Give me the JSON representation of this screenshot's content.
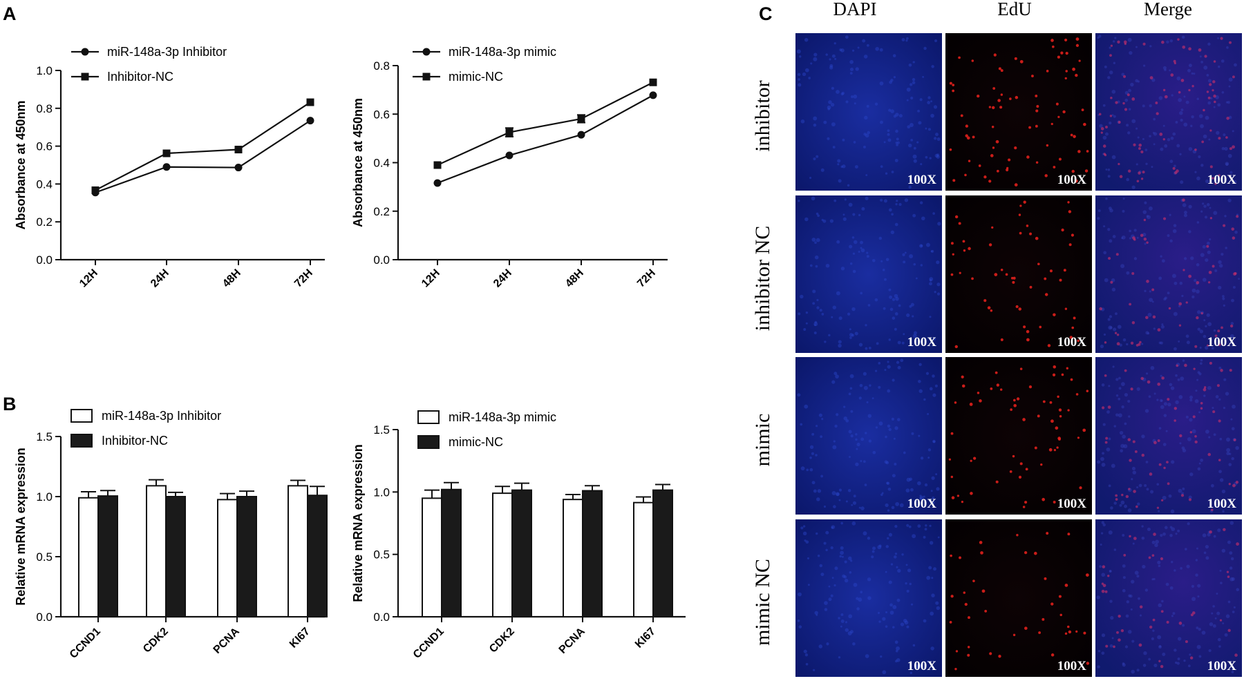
{
  "panel_labels": {
    "a": "A",
    "b": "B",
    "c": "C"
  },
  "chart_data": [
    {
      "type": "line",
      "panel": "A",
      "title": "",
      "xlabel": "",
      "ylabel": "Absorbance at 450nm",
      "categories": [
        "12H",
        "24H",
        "48H",
        "72H"
      ],
      "ylim": [
        0,
        1.0
      ],
      "yticks": [
        "0.0",
        "0.2",
        "0.4",
        "0.6",
        "0.8",
        "1.0"
      ],
      "yticks_values": [
        0,
        0.2,
        0.4,
        0.6,
        0.8,
        1.0
      ],
      "series": [
        {
          "name": "miR-148a-3p Inhibitor",
          "marker": "circle",
          "values": [
            0.355,
            0.49,
            0.487,
            0.735
          ]
        },
        {
          "name": "Inhibitor-NC",
          "marker": "square",
          "values": [
            0.367,
            0.562,
            0.582,
            0.832
          ]
        }
      ]
    },
    {
      "type": "line",
      "panel": "A",
      "title": "",
      "xlabel": "",
      "ylabel": "Absorbance at 450nm",
      "categories": [
        "12H",
        "24H",
        "48H",
        "72H"
      ],
      "ylim": [
        0,
        0.8
      ],
      "yticks": [
        "0.0",
        "0.2",
        "0.4",
        "0.6",
        "0.8"
      ],
      "yticks_values": [
        0,
        0.2,
        0.4,
        0.6,
        0.8
      ],
      "series": [
        {
          "name": "miR-148a-3p mimic",
          "marker": "circle",
          "values": [
            0.316,
            0.43,
            0.515,
            0.678
          ]
        },
        {
          "name": "mimic-NC",
          "marker": "square",
          "values": [
            0.39,
            0.525,
            0.581,
            0.731
          ]
        }
      ]
    },
    {
      "type": "bar",
      "panel": "B",
      "title": "",
      "xlabel": "",
      "ylabel": "Relative mRNA expression",
      "categories": [
        "CCND1",
        "CDK2",
        "PCNA",
        "KI67"
      ],
      "ylim": [
        0,
        1.5
      ],
      "yticks": [
        "0.0",
        "0.5",
        "1.0",
        "1.5"
      ],
      "yticks_values": [
        0,
        0.5,
        1.0,
        1.5
      ],
      "series": [
        {
          "name": "miR-148a-3p Inhibitor",
          "fill": "#ffffff",
          "values": [
            0.99,
            1.09,
            0.975,
            1.09
          ],
          "errors": [
            0.05,
            0.05,
            0.05,
            0.045
          ]
        },
        {
          "name": "Inhibitor-NC",
          "fill": "#1a1a1a",
          "values": [
            1.005,
            1.0,
            1.0,
            1.01
          ],
          "errors": [
            0.045,
            0.035,
            0.045,
            0.075
          ]
        }
      ]
    },
    {
      "type": "bar",
      "panel": "B",
      "title": "",
      "xlabel": "",
      "ylabel": "Relative mRNA expression",
      "categories": [
        "CCND1",
        "CDK2",
        "PCNA",
        "KI67"
      ],
      "ylim": [
        0,
        1.5
      ],
      "yticks": [
        "0.0",
        "0.5",
        "1.0",
        "1.5"
      ],
      "yticks_values": [
        0,
        0.5,
        1.0,
        1.5
      ],
      "series": [
        {
          "name": "miR-148a-3p mimic",
          "fill": "#ffffff",
          "values": [
            0.95,
            0.99,
            0.94,
            0.915
          ],
          "errors": [
            0.065,
            0.055,
            0.04,
            0.045
          ]
        },
        {
          "name": "mimic-NC",
          "fill": "#1a1a1a",
          "values": [
            1.02,
            1.015,
            1.01,
            1.015
          ],
          "errors": [
            0.055,
            0.055,
            0.04,
            0.045
          ]
        }
      ]
    }
  ],
  "micrographs": {
    "columns": [
      "DAPI",
      "EdU",
      "Merge"
    ],
    "rows": [
      "inhibitor",
      "inhibitor  NC",
      "mimic",
      "mimic  NC"
    ],
    "magnification": "100X",
    "cell_counts": [
      80,
      55,
      62,
      40
    ],
    "colors": {
      "dapi_bg": "#0a1a6e",
      "edu_bg": "#050102",
      "merge_bg": "#1b1a66",
      "edu_dot": "#e0201c",
      "merge_dot": "#d0306a"
    }
  }
}
